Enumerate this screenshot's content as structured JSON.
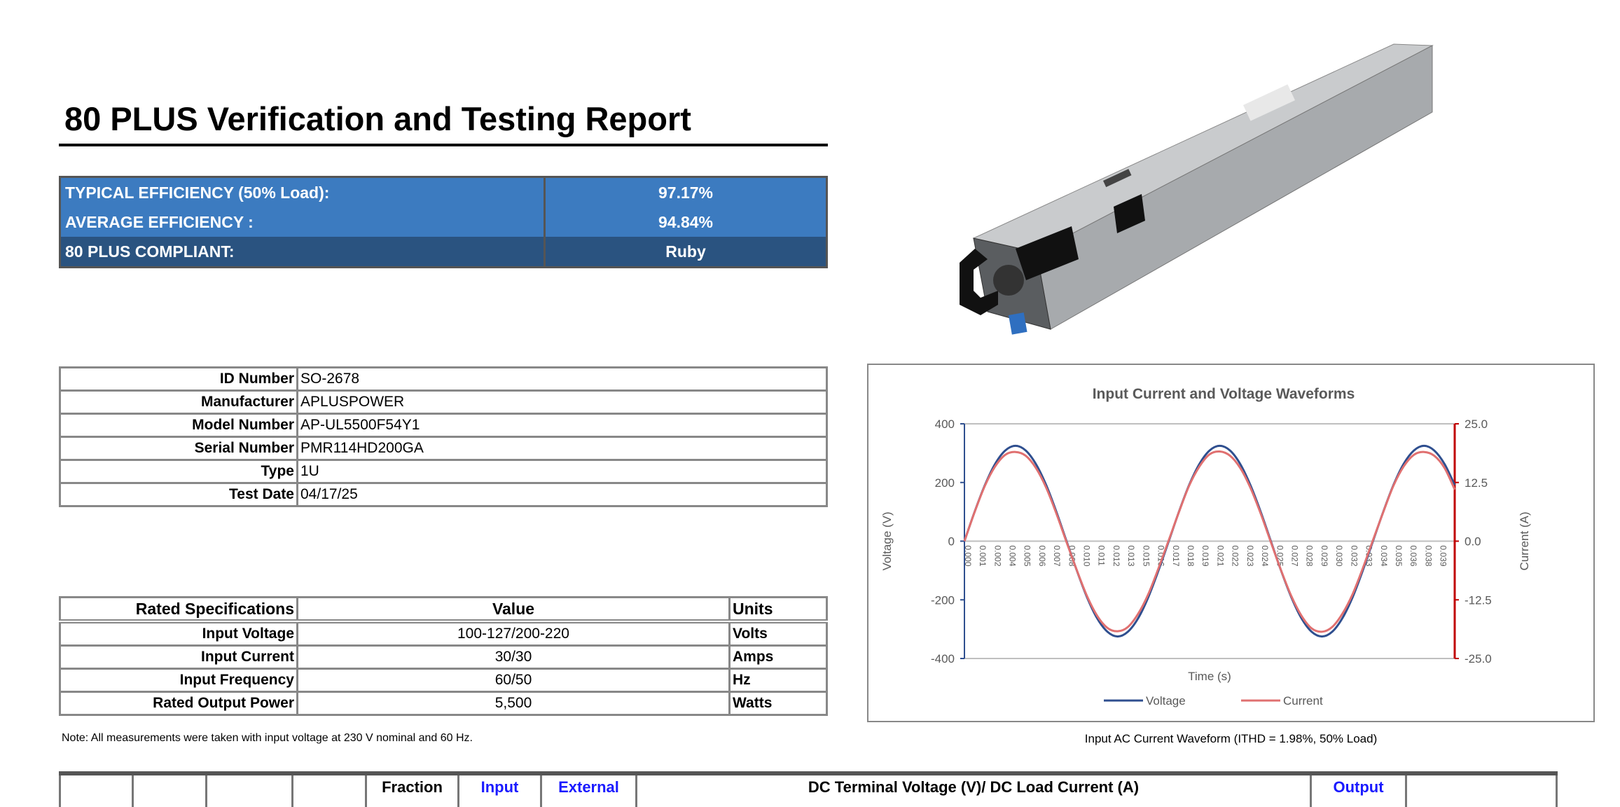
{
  "report": {
    "title": "80 PLUS Verification and Testing Report"
  },
  "efficiency": {
    "rows": [
      {
        "label": "TYPICAL EFFICIENCY (50% Load):",
        "value": "97.17%"
      },
      {
        "label": "AVERAGE EFFICIENCY :",
        "value": "94.84%"
      },
      {
        "label": "80 PLUS COMPLIANT:",
        "value": "Ruby"
      }
    ],
    "colors": {
      "primary_row": "#3c7bc0",
      "compliant_row": "#2a5380"
    }
  },
  "identification": {
    "rows": [
      {
        "label": "ID Number",
        "value": "SO-2678"
      },
      {
        "label": "Manufacturer",
        "value": "APLUSPOWER"
      },
      {
        "label": "Model Number",
        "value": "AP-UL5500F54Y1"
      },
      {
        "label": "Serial Number",
        "value": "PMR114HD200GA"
      },
      {
        "label": "Type",
        "value": "1U"
      },
      {
        "label": "Test Date",
        "value": "04/17/25"
      }
    ]
  },
  "rated_specs": {
    "headers": [
      "Rated Specifications",
      "Value",
      "Units"
    ],
    "rows": [
      {
        "label": "Input Voltage",
        "value": "100-127/200-220",
        "units": "Volts"
      },
      {
        "label": "Input Current",
        "value": "30/30",
        "units": "Amps"
      },
      {
        "label": "Input Frequency",
        "value": "60/50",
        "units": "Hz"
      },
      {
        "label": "Rated Output Power",
        "value": "5,500",
        "units": "Watts"
      }
    ],
    "note": "Note: All measurements were taken with input voltage at 230 V nominal and 60 Hz."
  },
  "product_image": {
    "subject": "power-supply-unit"
  },
  "chart_caption": "Input AC Current Waveform (ITHD = 1.98%, 50% Load)",
  "chart_data": {
    "type": "line",
    "title": "Input Current and Voltage Waveforms",
    "xlabel": "Time (s)",
    "ylabel": "Voltage (V)",
    "y2label": "Current (A)",
    "xlim": [
      0,
      0.04
    ],
    "ylim": [
      -400,
      400
    ],
    "y2lim": [
      -25,
      25
    ],
    "yticks": [
      "400",
      "200",
      "0",
      "-200",
      "-400"
    ],
    "y2ticks": [
      "25.0",
      "12.5",
      "0.0",
      "-12.5",
      "-25.0"
    ],
    "xticklabels": [
      "0.000",
      "0.001",
      "0.002",
      "0.004",
      "0.005",
      "0.006",
      "0.007",
      "0.008",
      "0.010",
      "0.011",
      "0.012",
      "0.013",
      "0.015",
      "0.016",
      "0.017",
      "0.018",
      "0.019",
      "0.021",
      "0.022",
      "0.023",
      "0.024",
      "0.025",
      "0.027",
      "0.028",
      "0.029",
      "0.030",
      "0.032",
      "0.033",
      "0.034",
      "0.035",
      "0.036",
      "0.038",
      "0.039"
    ],
    "grid": "horizontal at 400, 0, -400",
    "legend": "bottom",
    "x": [
      0.0,
      0.00083,
      0.00167,
      0.0025,
      0.00333,
      0.00417,
      0.005,
      0.00583,
      0.00667,
      0.0075,
      0.00833,
      0.00917,
      0.01,
      0.01083,
      0.01167,
      0.0125,
      0.01333,
      0.01417,
      0.015,
      0.01583,
      0.01667,
      0.0175,
      0.01833,
      0.01917,
      0.02,
      0.02083,
      0.02167,
      0.0225,
      0.02333,
      0.02417,
      0.025,
      0.02583,
      0.02667,
      0.0275,
      0.02833,
      0.02917,
      0.03,
      0.03083,
      0.03167,
      0.0325,
      0.03333,
      0.03417,
      0.035,
      0.03583,
      0.03667,
      0.0375,
      0.03833,
      0.03917,
      0.04
    ],
    "series": [
      {
        "name": "Voltage",
        "axis": "left",
        "color": "#2f4f8f",
        "values": [
          0,
          100,
          191,
          263,
          309,
          325,
          309,
          263,
          191,
          100,
          0,
          -100,
          -191,
          -263,
          -309,
          -325,
          -309,
          -263,
          -191,
          -100,
          0,
          100,
          191,
          263,
          309,
          325,
          309,
          263,
          191,
          100,
          0,
          -100,
          -191,
          -263,
          -309,
          -325,
          -309,
          -263,
          -191,
          -100,
          0,
          100,
          191,
          263,
          309,
          325,
          309,
          263,
          191
        ]
      },
      {
        "name": "Current",
        "axis": "right",
        "color": "#e07070",
        "values": [
          0,
          6.2,
          11.8,
          15.9,
          18.4,
          19.0,
          18.2,
          15.6,
          11.4,
          5.9,
          -0.2,
          -6.2,
          -11.7,
          -15.9,
          -18.5,
          -19.2,
          -18.3,
          -15.5,
          -11.3,
          -5.8,
          0.2,
          6.2,
          11.8,
          15.9,
          18.5,
          19.1,
          18.2,
          15.6,
          11.4,
          5.9,
          -0.2,
          -6.2,
          -11.7,
          -15.9,
          -18.6,
          -19.3,
          -18.3,
          -15.5,
          -11.3,
          -5.8,
          0.2,
          6.2,
          11.8,
          15.9,
          18.4,
          19.0,
          18.2,
          15.6,
          11.0
        ]
      }
    ],
    "axis_colors": {
      "left": "#2f4f8f",
      "right": "#c00000"
    }
  },
  "results_table": {
    "headers": [
      "",
      "",
      "",
      "",
      "Fraction",
      "Input",
      "External",
      "DC Terminal Voltage (V)/ DC Load Current (A)",
      "Output",
      ""
    ]
  }
}
